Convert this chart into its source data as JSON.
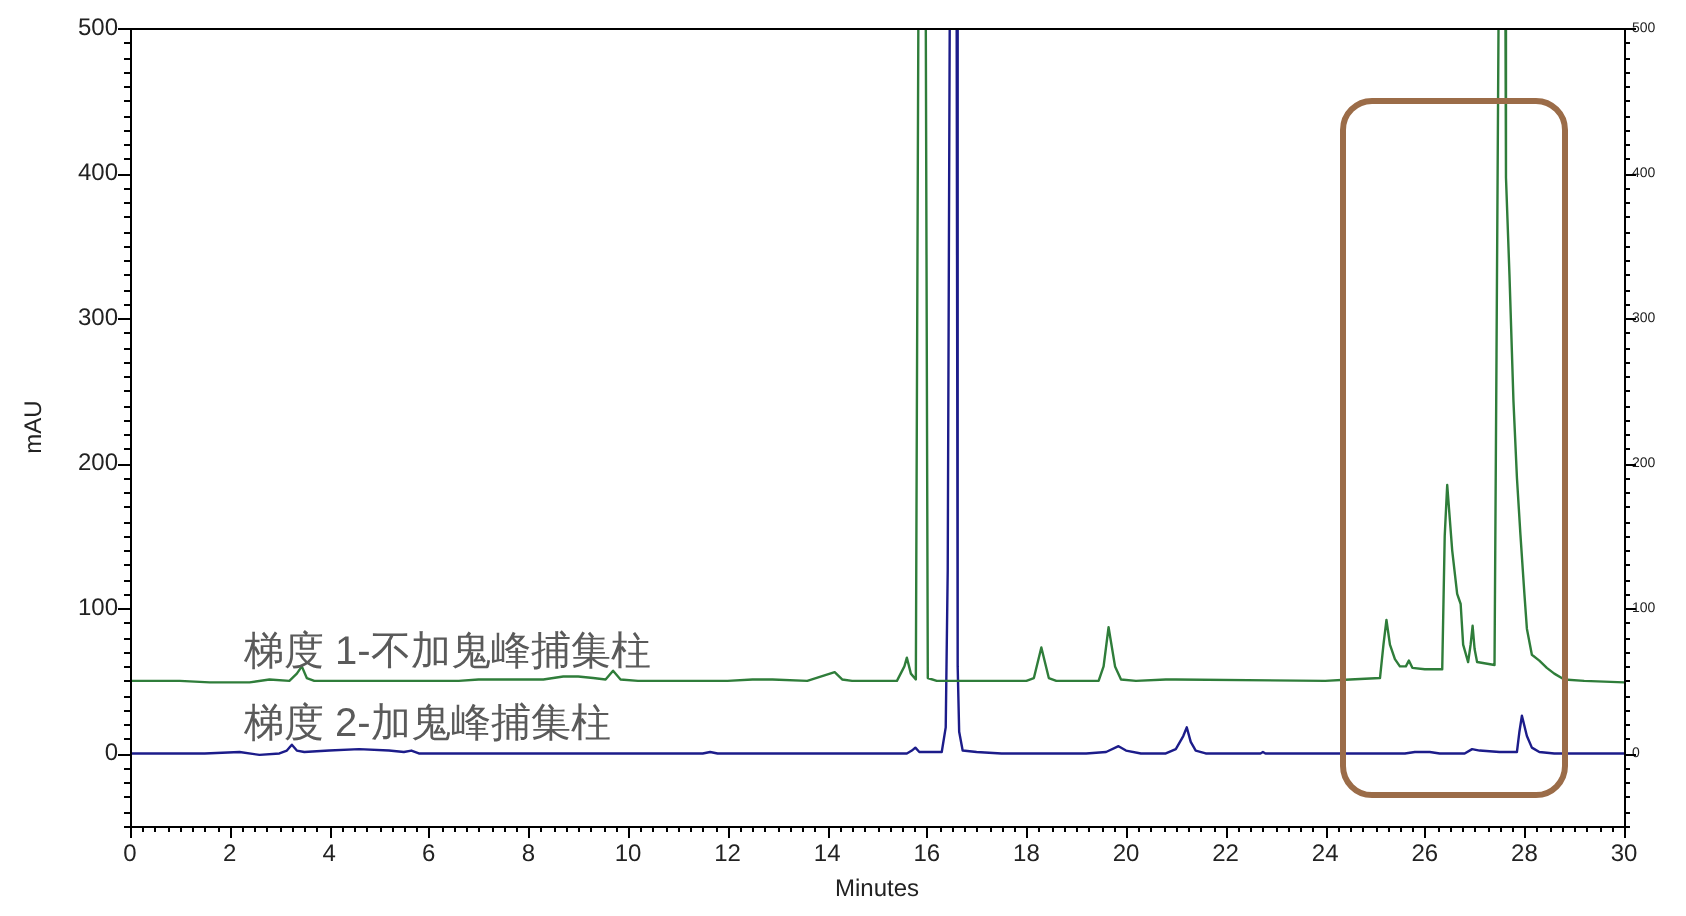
{
  "chart_data": {
    "type": "line",
    "xlabel": "Minutes",
    "ylabel": "mAU",
    "xlim": [
      0,
      30
    ],
    "xticks": [
      0,
      {
        "value": 0.25,
        "label": null
      },
      {
        "value": 0.5,
        "label": null
      },
      {
        "value": 0.75,
        "label": null
      },
      {
        "value": 1,
        "label": null
      },
      {
        "value": 1.25,
        "label": null
      },
      {
        "value": 1.5,
        "label": null
      },
      {
        "value": 1.75,
        "label": null
      },
      2,
      {
        "value": 2.25,
        "label": null
      },
      {
        "value": 2.5,
        "label": null
      },
      {
        "value": 2.75,
        "label": null
      },
      {
        "value": 3,
        "label": null
      },
      {
        "value": 3.25,
        "label": null
      },
      {
        "value": 3.5,
        "label": null
      },
      {
        "value": 3.75,
        "label": null
      },
      4,
      {
        "value": 4.25,
        "label": null
      },
      {
        "value": 4.5,
        "label": null
      },
      {
        "value": 4.75,
        "label": null
      },
      {
        "value": 5,
        "label": null
      },
      {
        "value": 5.25,
        "label": null
      },
      {
        "value": 5.5,
        "label": null
      },
      {
        "value": 5.75,
        "label": null
      },
      6,
      {
        "value": 6.25,
        "label": null
      },
      {
        "value": 6.5,
        "label": null
      },
      {
        "value": 6.75,
        "label": null
      },
      {
        "value": 7,
        "label": null
      },
      {
        "value": 7.25,
        "label": null
      },
      {
        "value": 7.5,
        "label": null
      },
      {
        "value": 7.75,
        "label": null
      },
      8,
      {
        "value": 8.25,
        "label": null
      },
      {
        "value": 8.5,
        "label": null
      },
      {
        "value": 8.75,
        "label": null
      },
      {
        "value": 9,
        "label": null
      },
      {
        "value": 9.25,
        "label": null
      },
      {
        "value": 9.5,
        "label": null
      },
      {
        "value": 9.75,
        "label": null
      },
      10,
      {
        "value": 10.25,
        "label": null
      },
      {
        "value": 10.5,
        "label": null
      },
      {
        "value": 10.75,
        "label": null
      },
      {
        "value": 11,
        "label": null
      },
      {
        "value": 11.25,
        "label": null
      },
      {
        "value": 11.5,
        "label": null
      },
      {
        "value": 11.75,
        "label": null
      },
      12,
      {
        "value": 12.25,
        "label": null
      },
      {
        "value": 12.5,
        "label": null
      },
      {
        "value": 12.75,
        "label": null
      },
      {
        "value": 13,
        "label": null
      },
      {
        "value": 13.25,
        "label": null
      },
      {
        "value": 13.5,
        "label": null
      },
      {
        "value": 13.75,
        "label": null
      },
      14,
      {
        "value": 14.25,
        "label": null
      },
      {
        "value": 14.5,
        "label": null
      },
      {
        "value": 14.75,
        "label": null
      },
      {
        "value": 15,
        "label": null
      },
      {
        "value": 15.25,
        "label": null
      },
      {
        "value": 15.5,
        "label": null
      },
      {
        "value": 15.75,
        "label": null
      },
      16,
      {
        "value": 16.25,
        "label": null
      },
      {
        "value": 16.5,
        "label": null
      },
      {
        "value": 16.75,
        "label": null
      },
      {
        "value": 17,
        "label": null
      },
      {
        "value": 17.25,
        "label": null
      },
      {
        "value": 17.5,
        "label": null
      },
      {
        "value": 17.75,
        "label": null
      },
      18,
      {
        "value": 18.25,
        "label": null
      },
      {
        "value": 18.5,
        "label": null
      },
      {
        "value": 18.75,
        "label": null
      },
      {
        "value": 19,
        "label": null
      },
      {
        "value": 19.25,
        "label": null
      },
      {
        "value": 19.5,
        "label": null
      },
      {
        "value": 19.75,
        "label": null
      },
      20,
      {
        "value": 20.25,
        "label": null
      },
      {
        "value": 20.5,
        "label": null
      },
      {
        "value": 20.75,
        "label": null
      },
      {
        "value": 21,
        "label": null
      },
      {
        "value": 21.25,
        "label": null
      },
      {
        "value": 21.5,
        "label": null
      },
      {
        "value": 21.75,
        "label": null
      },
      22,
      {
        "value": 22.25,
        "label": null
      },
      {
        "value": 22.5,
        "label": null
      },
      {
        "value": 22.75,
        "label": null
      },
      {
        "value": 23,
        "label": null
      },
      {
        "value": 23.25,
        "label": null
      },
      {
        "value": 23.5,
        "label": null
      },
      {
        "value": 23.75,
        "label": null
      },
      24,
      {
        "value": 24.25,
        "label": null
      },
      {
        "value": 24.5,
        "label": null
      },
      {
        "value": 24.75,
        "label": null
      },
      {
        "value": 25,
        "label": null
      },
      {
        "value": 25.25,
        "label": null
      },
      {
        "value": 25.5,
        "label": null
      },
      {
        "value": 25.75,
        "label": null
      },
      26,
      {
        "value": 26.25,
        "label": null
      },
      {
        "value": 26.5,
        "label": null
      },
      {
        "value": 26.75,
        "label": null
      },
      {
        "value": 27,
        "label": null
      },
      {
        "value": 27.25,
        "label": null
      },
      {
        "value": 27.5,
        "label": null
      },
      {
        "value": 27.75,
        "label": null
      },
      28,
      {
        "value": 28.25,
        "label": null
      },
      {
        "value": 28.5,
        "label": null
      },
      {
        "value": 28.75,
        "label": null
      },
      {
        "value": 29,
        "label": null
      },
      {
        "value": 29.25,
        "label": null
      },
      {
        "value": 29.5,
        "label": null
      },
      {
        "value": 29.75,
        "label": null
      },
      30
    ],
    "ylim": [
      -50,
      500
    ],
    "yticks": [
      {
        "value": -50,
        "label": null
      },
      {
        "value": -40,
        "label": null
      },
      {
        "value": -30,
        "label": null
      },
      {
        "value": -20,
        "label": null
      },
      {
        "value": -10,
        "label": null
      },
      0,
      {
        "value": 10,
        "label": null
      },
      {
        "value": 20,
        "label": null
      },
      {
        "value": 30,
        "label": null
      },
      {
        "value": 40,
        "label": null
      },
      {
        "value": 50,
        "label": null
      },
      {
        "value": 60,
        "label": null
      },
      {
        "value": 70,
        "label": null
      },
      {
        "value": 80,
        "label": null
      },
      {
        "value": 90,
        "label": null
      },
      100,
      {
        "value": 110,
        "label": null
      },
      {
        "value": 120,
        "label": null
      },
      {
        "value": 130,
        "label": null
      },
      {
        "value": 140,
        "label": null
      },
      {
        "value": 150,
        "label": null
      },
      {
        "value": 160,
        "label": null
      },
      {
        "value": 170,
        "label": null
      },
      {
        "value": 180,
        "label": null
      },
      {
        "value": 190,
        "label": null
      },
      200,
      {
        "value": 210,
        "label": null
      },
      {
        "value": 220,
        "label": null
      },
      {
        "value": 230,
        "label": null
      },
      {
        "value": 240,
        "label": null
      },
      {
        "value": 250,
        "label": null
      },
      {
        "value": 260,
        "label": null
      },
      {
        "value": 270,
        "label": null
      },
      {
        "value": 280,
        "label": null
      },
      {
        "value": 290,
        "label": null
      },
      300,
      {
        "value": 310,
        "label": null
      },
      {
        "value": 320,
        "label": null
      },
      {
        "value": 330,
        "label": null
      },
      {
        "value": 340,
        "label": null
      },
      {
        "value": 350,
        "label": null
      },
      {
        "value": 360,
        "label": null
      },
      {
        "value": 370,
        "label": null
      },
      {
        "value": 380,
        "label": null
      },
      {
        "value": 390,
        "label": null
      },
      400,
      {
        "value": 410,
        "label": null
      },
      {
        "value": 420,
        "label": null
      },
      {
        "value": 430,
        "label": null
      },
      {
        "value": 440,
        "label": null
      },
      {
        "value": 450,
        "label": null
      },
      {
        "value": 460,
        "label": null
      },
      {
        "value": 470,
        "label": null
      },
      {
        "value": 480,
        "label": null
      },
      {
        "value": 490,
        "label": null
      },
      500
    ],
    "y2lim": [
      -50,
      500
    ],
    "y2ticks": [
      {
        "value": -50,
        "label": null
      },
      {
        "value": -40,
        "label": null
      },
      {
        "value": -30,
        "label": null
      },
      {
        "value": -20,
        "label": null
      },
      {
        "value": -10,
        "label": null
      },
      0,
      {
        "value": 10,
        "label": null
      },
      {
        "value": 20,
        "label": null
      },
      {
        "value": 30,
        "label": null
      },
      {
        "value": 40,
        "label": null
      },
      {
        "value": 50,
        "label": null
      },
      {
        "value": 60,
        "label": null
      },
      {
        "value": 70,
        "label": null
      },
      {
        "value": 80,
        "label": null
      },
      {
        "value": 90,
        "label": null
      },
      100,
      {
        "value": 110,
        "label": null
      },
      {
        "value": 120,
        "label": null
      },
      {
        "value": 130,
        "label": null
      },
      {
        "value": 140,
        "label": null
      },
      {
        "value": 150,
        "label": null
      },
      {
        "value": 160,
        "label": null
      },
      {
        "value": 170,
        "label": null
      },
      {
        "value": 180,
        "label": null
      },
      {
        "value": 190,
        "label": null
      },
      200,
      {
        "value": 210,
        "label": null
      },
      {
        "value": 220,
        "label": null
      },
      {
        "value": 230,
        "label": null
      },
      {
        "value": 240,
        "label": null
      },
      {
        "value": 250,
        "label": null
      },
      {
        "value": 260,
        "label": null
      },
      {
        "value": 270,
        "label": null
      },
      {
        "value": 280,
        "label": null
      },
      {
        "value": 290,
        "label": null
      },
      300,
      {
        "value": 310,
        "label": null
      },
      {
        "value": 320,
        "label": null
      },
      {
        "value": 330,
        "label": null
      },
      {
        "value": 340,
        "label": null
      },
      {
        "value": 350,
        "label": null
      },
      {
        "value": 360,
        "label": null
      },
      {
        "value": 370,
        "label": null
      },
      {
        "value": 380,
        "label": null
      },
      {
        "value": 390,
        "label": null
      },
      400,
      {
        "value": 410,
        "label": null
      },
      {
        "value": 420,
        "label": null
      },
      {
        "value": 430,
        "label": null
      },
      {
        "value": 440,
        "label": null
      },
      {
        "value": 450,
        "label": null
      },
      {
        "value": 460,
        "label": null
      },
      {
        "value": 470,
        "label": null
      },
      {
        "value": 480,
        "label": null
      },
      {
        "value": 490,
        "label": null
      },
      500
    ],
    "series": [
      {
        "name": "梯度 1-不加鬼峰捕集柱",
        "color": "#2f7d3a",
        "x": [
          0,
          1.0,
          1.6,
          2.4,
          2.8,
          3.2,
          3.35,
          3.45,
          3.55,
          3.7,
          6.0,
          6.6,
          7.0,
          8.3,
          8.7,
          9.0,
          9.3,
          9.55,
          9.7,
          9.85,
          10.2,
          12.0,
          12.5,
          12.9,
          13.6,
          14.15,
          14.3,
          14.5,
          15.4,
          15.55,
          15.6,
          15.68,
          15.78,
          15.83,
          15.98,
          16.02,
          16.2,
          18.0,
          18.15,
          18.3,
          18.45,
          18.6,
          19.45,
          19.55,
          19.65,
          19.78,
          19.9,
          20.2,
          20.8,
          21.0,
          24.0,
          24.5,
          25.1,
          25.17,
          25.23,
          25.3,
          25.4,
          25.5,
          25.62,
          25.68,
          25.75,
          26.0,
          26.35,
          26.4,
          26.45,
          26.55,
          26.65,
          26.72,
          26.77,
          26.87,
          26.92,
          26.96,
          27.0,
          27.05,
          27.4,
          27.44,
          27.48,
          27.62,
          27.63,
          27.7,
          27.78,
          27.85,
          27.92,
          28.0,
          28.05,
          28.15,
          28.3,
          28.45,
          28.6,
          28.8,
          29.2,
          30
        ],
        "values": [
          50,
          50,
          49,
          49,
          51,
          50,
          55,
          60,
          52,
          50,
          50,
          50,
          51,
          51,
          53,
          53,
          52,
          51,
          57,
          51,
          50,
          50,
          51,
          51,
          50,
          56,
          51,
          50,
          50,
          60,
          66,
          55,
          51,
          500,
          500,
          52,
          50,
          50,
          52,
          73,
          52,
          50,
          50,
          60,
          87,
          60,
          51,
          50,
          51,
          51,
          50,
          51,
          52,
          75,
          92,
          75,
          65,
          60,
          60,
          64,
          59,
          58,
          58,
          150,
          185,
          140,
          110,
          103,
          75,
          63,
          75,
          88,
          72,
          63,
          61,
          275,
          500,
          500,
          397,
          330,
          243,
          190,
          151,
          110,
          86,
          68,
          64,
          59,
          55,
          51,
          50,
          49
        ]
      },
      {
        "name": "梯度 2-加鬼峰捕集柱",
        "color": "#1c1c8a",
        "x": [
          0,
          1.5,
          2.2,
          2.6,
          3.0,
          3.15,
          3.25,
          3.35,
          3.5,
          4.0,
          4.6,
          5.2,
          5.5,
          5.65,
          5.8,
          6.2,
          11.5,
          11.65,
          11.8,
          13.0,
          15.6,
          15.7,
          15.77,
          15.85,
          16.3,
          16.38,
          16.42,
          16.46,
          16.6,
          16.62,
          16.65,
          16.72,
          17.0,
          17.5,
          19.2,
          19.6,
          19.85,
          20.0,
          20.3,
          20.8,
          21.0,
          21.15,
          21.22,
          21.3,
          21.4,
          21.6,
          22.7,
          22.75,
          22.8,
          25.6,
          25.8,
          26.1,
          26.3,
          26.8,
          26.95,
          27.1,
          27.5,
          27.85,
          27.9,
          27.95,
          28.05,
          28.15,
          28.3,
          28.6,
          30
        ],
        "values": [
          0,
          0,
          1,
          -1,
          0,
          2,
          6,
          2,
          1,
          2,
          3,
          2,
          1,
          2,
          0,
          0,
          0,
          1,
          0,
          0,
          0,
          2,
          4,
          1,
          1,
          18,
          126,
          500,
          500,
          60,
          15,
          2,
          1,
          0,
          0,
          1,
          5,
          2,
          0,
          0,
          3,
          12,
          18,
          8,
          2,
          0,
          0,
          1,
          0,
          0,
          1,
          1,
          0,
          0,
          3,
          2,
          1,
          1,
          15,
          26,
          12,
          4,
          1,
          0,
          0
        ]
      }
    ]
  }
}
